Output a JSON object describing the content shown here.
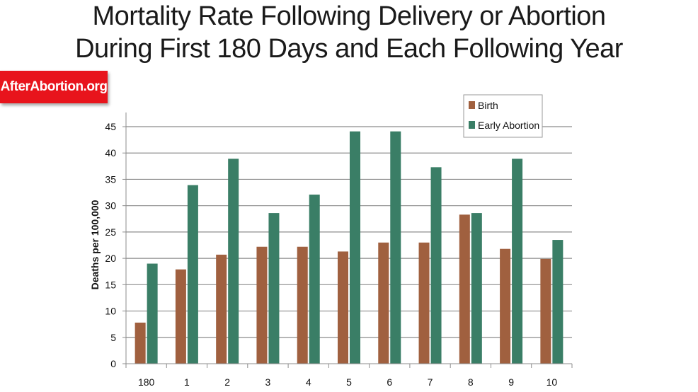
{
  "logo": {
    "text": "AfterAbortion.org"
  },
  "chart_data": {
    "type": "bar",
    "title_line1": "Mortality Rate Following Delivery or Abortion",
    "title_line2": "During First 180 Days and Each Following Year",
    "xlabel": "",
    "ylabel": "Deaths per 100,000",
    "ylim": [
      0,
      45
    ],
    "yticks": [
      0,
      5,
      10,
      15,
      20,
      25,
      30,
      35,
      40,
      45
    ],
    "grid": true,
    "legend_position": "top-right",
    "categories": [
      "180",
      "1",
      "2",
      "3",
      "4",
      "5",
      "6",
      "7",
      "8",
      "9",
      "10"
    ],
    "series": [
      {
        "name": "Birth",
        "color": "#a0603f",
        "values": [
          7.8,
          17.9,
          20.7,
          22.2,
          22.2,
          21.3,
          23,
          23,
          28.3,
          21.8,
          19.9
        ]
      },
      {
        "name": "Early Abortion",
        "color": "#3a7e66",
        "values": [
          19,
          33.9,
          38.9,
          28.6,
          32.1,
          44.1,
          44.1,
          37.3,
          28.6,
          38.9,
          23.5
        ]
      }
    ]
  }
}
